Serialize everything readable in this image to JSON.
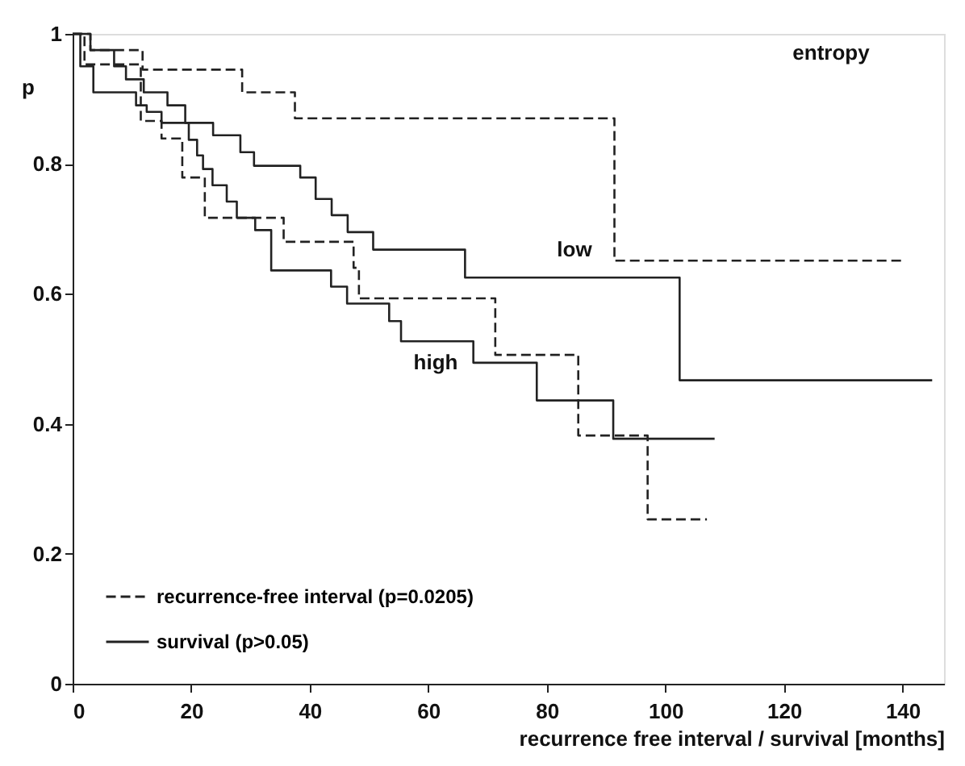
{
  "chart_data": {
    "type": "step",
    "xlabel": "recurrence free interval / survival [months]",
    "ylabel": "p",
    "xlim": [
      0,
      147
    ],
    "xticks": [
      0,
      20,
      40,
      60,
      80,
      100,
      120,
      140
    ],
    "ylim": [
      0,
      1
    ],
    "yticks": [
      0,
      0.2,
      0.4,
      0.6,
      0.8,
      1
    ],
    "grid": false,
    "legend": "bottom left",
    "marker": "none",
    "series": [
      {
        "color": "#222222",
        "line_style": "dashed",
        "x": [
          0,
          3,
          11.8,
          28.6,
          37.5,
          91.4,
          140
        ],
        "values": [
          1,
          0.975,
          0.945,
          0.91,
          0.87,
          0.651,
          0.651
        ]
      },
      {
        "name": "recurrence-free interval (p=0.0205)",
        "color": "#222222",
        "line_style": "dashed",
        "x": [
          0,
          2,
          11.5,
          15,
          18.5,
          22.3,
          35.6,
          47.4,
          48.3,
          71.3,
          85.3,
          97,
          107
        ],
        "values": [
          1,
          0.953,
          0.866,
          0.839,
          0.779,
          0.717,
          0.68,
          0.64,
          0.593,
          0.506,
          0.382,
          0.253,
          0.253
        ]
      },
      {
        "color": "#222222",
        "line_style": "solid",
        "x": [
          0,
          3,
          7,
          9,
          12,
          16,
          19,
          23.7,
          28.3,
          30.6,
          38.4,
          41,
          43.7,
          46.4,
          50.7,
          66.2,
          102.4,
          145
        ],
        "values": [
          1,
          0.975,
          0.95,
          0.93,
          0.91,
          0.89,
          0.863,
          0.844,
          0.818,
          0.797,
          0.779,
          0.746,
          0.721,
          0.695,
          0.668,
          0.625,
          0.467,
          0.467
        ]
      },
      {
        "name": "survival (p>0.05)",
        "color": "#222222",
        "line_style": "solid",
        "x": [
          0,
          1.3,
          3.5,
          10.7,
          12.5,
          15,
          19.6,
          21,
          22,
          23.6,
          26,
          27.7,
          30.8,
          33.5,
          43.6,
          46.3,
          53.4,
          55.4,
          67.6,
          78.3,
          91.2,
          108.3
        ],
        "values": [
          1,
          0.95,
          0.91,
          0.89,
          0.88,
          0.863,
          0.837,
          0.813,
          0.792,
          0.767,
          0.742,
          0.717,
          0.698,
          0.636,
          0.611,
          0.585,
          0.558,
          0.527,
          0.494,
          0.436,
          0.377,
          0.377
        ]
      }
    ],
    "annotations": [
      "entropy",
      "low",
      "high"
    ]
  }
}
